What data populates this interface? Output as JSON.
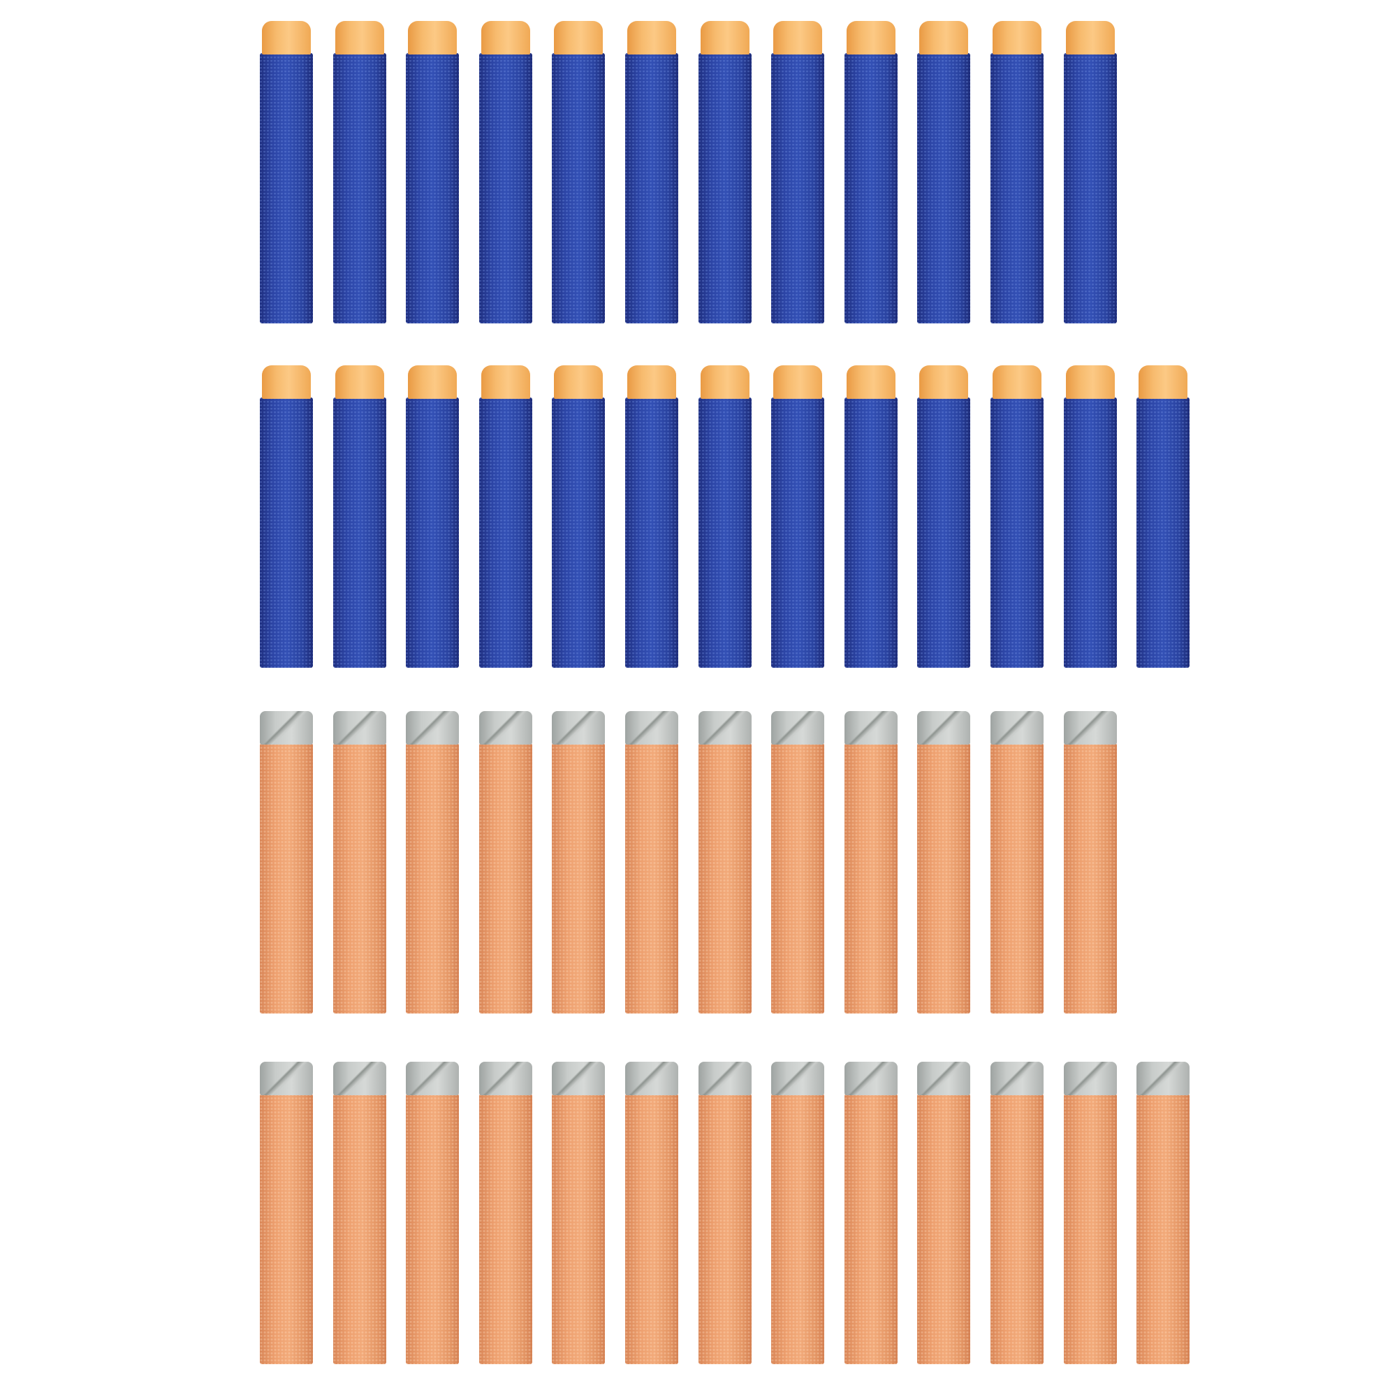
{
  "image": {
    "subject": "foam-darts",
    "colors": {
      "blue_body": "#2c45a6",
      "blue_tip": "#f7bb6e",
      "orange_body": "#eea06f",
      "gray_tip": "#c8ccca",
      "background": "#ffffff"
    },
    "rows": [
      {
        "type": "blue",
        "count": 12
      },
      {
        "type": "blue",
        "count": 13
      },
      {
        "type": "orange",
        "count": 12
      },
      {
        "type": "orange",
        "count": 13
      }
    ]
  }
}
